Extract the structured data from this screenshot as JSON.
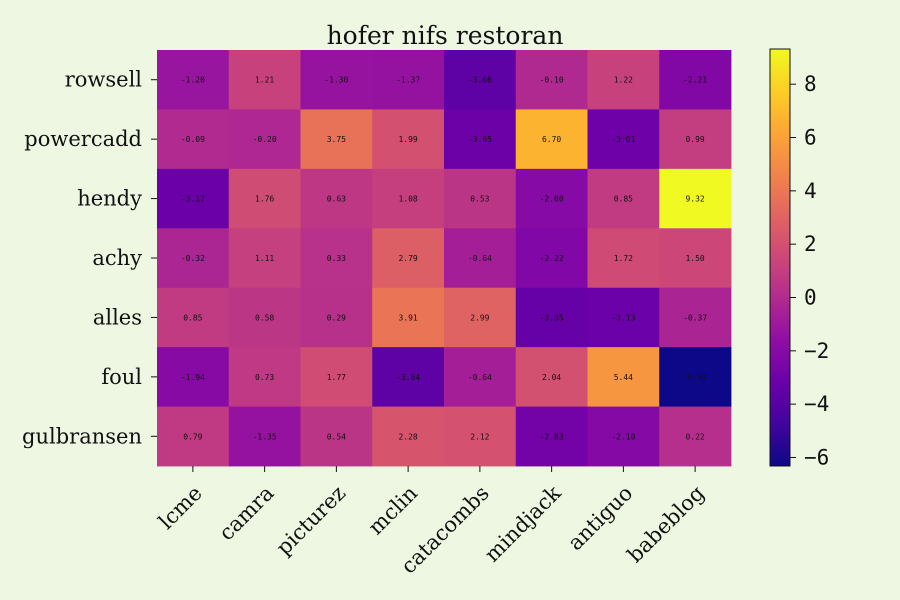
{
  "chart_data": {
    "type": "heatmap",
    "title": "hofer nifs restoran",
    "rows": [
      "rowsell",
      "powercadd",
      "hendy",
      "achy",
      "alles",
      "foul",
      "gulbransen"
    ],
    "columns": [
      "lcme",
      "camra",
      "picturez",
      "mclin",
      "catacombs",
      "mindjack",
      "antiguo",
      "babeblog"
    ],
    "values": [
      [
        -1.2,
        1.21,
        -1.3,
        -1.37,
        -3.66,
        -0.1,
        1.22,
        -2.21
      ],
      [
        -0.09,
        -0.2,
        3.75,
        1.99,
        -3.05,
        6.7,
        -3.01,
        0.99
      ],
      [
        -3.17,
        1.76,
        0.63,
        1.08,
        0.53,
        -2.0,
        0.85,
        9.32
      ],
      [
        -0.32,
        1.11,
        0.33,
        2.79,
        -0.64,
        -2.22,
        1.72,
        1.5
      ],
      [
        0.85,
        0.58,
        0.29,
        3.91,
        2.99,
        -3.35,
        -3.13,
        -0.37
      ],
      [
        -1.94,
        0.73,
        1.77,
        -3.64,
        -0.64,
        2.04,
        5.44,
        -6.32
      ],
      [
        0.79,
        -1.35,
        0.54,
        2.28,
        2.12,
        -2.83,
        -2.1,
        0.22
      ]
    ],
    "colormap": "plasma",
    "vmin": -6.32,
    "vmax": 9.32,
    "colorbar": {
      "ticks": [
        8,
        6,
        4,
        2,
        0,
        -2,
        -4,
        -6
      ],
      "tick_labels": [
        "8",
        "6",
        "4",
        "2",
        "0",
        "−2",
        "−4",
        "−6"
      ]
    },
    "xlabel": "",
    "ylabel": ""
  },
  "colors": {
    "background": "#eef7e2",
    "text": "#111111"
  }
}
